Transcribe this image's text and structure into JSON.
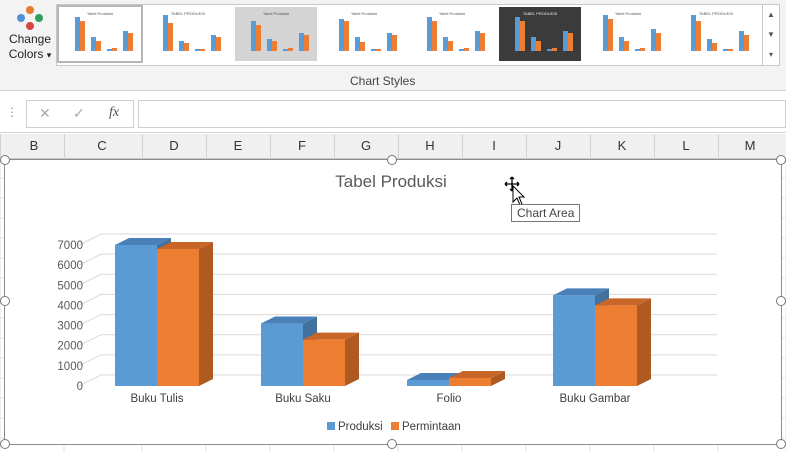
{
  "ribbon": {
    "change_colors": {
      "line1": "Change",
      "line2": "Colors",
      "dropdown": "▾"
    },
    "group_label": "Chart Styles",
    "styles": [
      {
        "title": "Tabel Produksi",
        "variant": "light"
      },
      {
        "title": "TABEL PRODUKSI",
        "variant": "light"
      },
      {
        "title": "Tabel Produksi",
        "variant": "gray"
      },
      {
        "title": "Tabel Produksi",
        "variant": "light"
      },
      {
        "title": "Tabel Produksi",
        "variant": "light"
      },
      {
        "title": "TABEL PRODUKSI",
        "variant": "dark"
      },
      {
        "title": "Tabel Produksi",
        "variant": "light"
      },
      {
        "title": "TABEL PRODUKSI",
        "variant": "light"
      }
    ],
    "scroll_up": "▲",
    "scroll_down": "▼",
    "scroll_more": "▾"
  },
  "formula_bar": {
    "cancel": "✕",
    "enter": "✓",
    "fx": "fx",
    "value": ""
  },
  "columns": [
    "B",
    "C",
    "D",
    "E",
    "F",
    "G",
    "H",
    "I",
    "J",
    "K",
    "L",
    "M"
  ],
  "tooltip": "Chart Area",
  "colors": {
    "produksi": "#5b9bd5",
    "permintaan": "#ed7d31",
    "produksi_dark": "#41719c",
    "permintaan_dark": "#ae5a21",
    "produksi_top": "#4a80b8",
    "permintaan_top": "#c8662a"
  },
  "chart_data": {
    "type": "bar",
    "title": "Tabel Produksi",
    "categories": [
      "Buku Tulis",
      "Buku Saku",
      "Folio",
      "Buku Gambar"
    ],
    "series": [
      {
        "name": "Produksi",
        "values": [
          7000,
          3100,
          300,
          4500
        ]
      },
      {
        "name": "Permintaan",
        "values": [
          6800,
          2300,
          400,
          4000
        ]
      }
    ],
    "ylim": [
      0,
      7000
    ],
    "yticks": [
      "0",
      "1000",
      "2000",
      "3000",
      "4000",
      "5000",
      "6000",
      "7000"
    ],
    "grid": true,
    "legend": "bottom",
    "style": "3D clustered column"
  }
}
